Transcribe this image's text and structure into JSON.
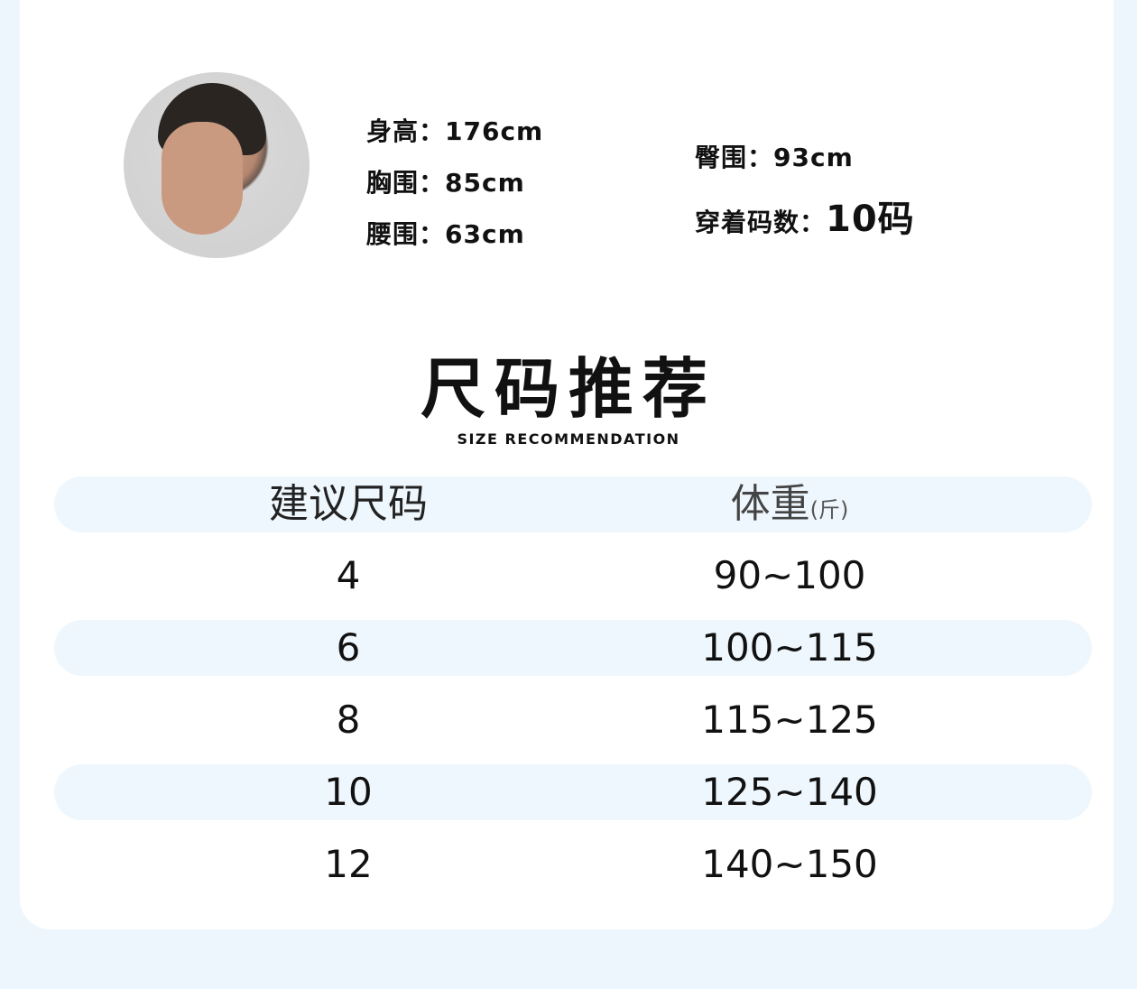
{
  "model": {
    "height": "身高：176cm",
    "chest": "胸围：85cm",
    "waist": "腰围：63cm",
    "hip": "臀围：93cm",
    "size_label": "穿着码数：",
    "size_value": "10码"
  },
  "section": {
    "title": "尺码推荐",
    "subtitle": "SIZE RECOMMENDATION"
  },
  "table": {
    "headers": {
      "size": "建议尺码",
      "weight": "体重",
      "weight_unit": "(斤)"
    },
    "rows": [
      {
        "size": "4",
        "weight": "90~100"
      },
      {
        "size": "6",
        "weight": "100~115"
      },
      {
        "size": "8",
        "weight": "115~125"
      },
      {
        "size": "10",
        "weight": "125~140"
      },
      {
        "size": "12",
        "weight": "140~150"
      }
    ]
  },
  "colors": {
    "background": "#eef6fd",
    "row_shade": "#eef7fd",
    "card": "#ffffff"
  }
}
